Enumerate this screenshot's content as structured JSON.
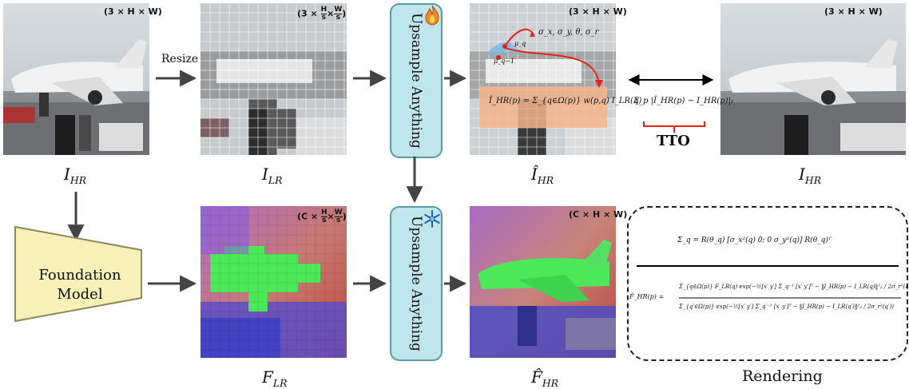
{
  "labels": {
    "ihr_top": "I",
    "ihr_top_sub": "HR",
    "ilr": "I",
    "ilr_sub": "LR",
    "ihat": "Î",
    "ihat_sub": "HR",
    "ihr_right": "I",
    "ihr_right_sub": "HR",
    "flr": "F",
    "flr_sub": "LR",
    "fhat": "F̂",
    "fhat_sub": "HR",
    "rendering": "Rendering"
  },
  "dims": {
    "img1": "(3 × H × W)",
    "img2_prefix": "(3 ×",
    "img2_suffix": ")",
    "frac_num": "H",
    "frac_den": "s",
    "frac_num2": "W",
    "frac_den2": "s",
    "img3": "(3 × H × W)",
    "img4": "(3 × H × W)",
    "feat1_prefix": "(C ×",
    "feat1_suffix": ")",
    "feat2": "(C × H × W)"
  },
  "arrows": {
    "resize": "Resize"
  },
  "blocks": {
    "upsample_top": "Upsample Anything",
    "upsample_bottom": "Upsample Anything",
    "foundation_line1": "Foundation",
    "foundation_line2": "Model"
  },
  "equations": {
    "gauss_params": "σ_x, σ_y, θ, σ_r",
    "mu_q": "μ_q",
    "mu_q1": "μ_q−1",
    "splat": "Î_HR(p) = Σ_{q∈Ω(p)} w(p,q) I_LR(q)",
    "loss": "Σ_p |Î_HR(p) − I_HR(p)|₁",
    "tto": "TTO",
    "cov": "Σ_q = R(θ_q) [σ_x²(q) 0; 0 σ_y²(q)] R(θ_q)ᵀ",
    "fhat_num": "Σ_{q∈Ω(p)} F_LR(q) exp(−½[x′ y′] Σ_q⁻¹ [x′ y′]ᵀ − ‖I_HR(p) − I_LR(q)‖²₂ / 2σ_r²(q))",
    "fhat_lhs": "F̂_HR(p) =",
    "fhat_den": "Σ_{q′∈Ω(p)} exp(−½[x′ y′] Σ_q′⁻¹ [x′ y′]ᵀ − ‖I_HR(p) − I_LR(q′)‖²₂ / 2σ_r²(q′))"
  },
  "colors": {
    "block_fill": "#bfe6ec",
    "block_border": "#5a9aa6",
    "foundation_fill": "#f7f0b8",
    "highlight": "#f3b48c",
    "red": "#e0241b"
  },
  "icons": {
    "hot": "fire-icon",
    "frozen": "snowflake-icon"
  }
}
